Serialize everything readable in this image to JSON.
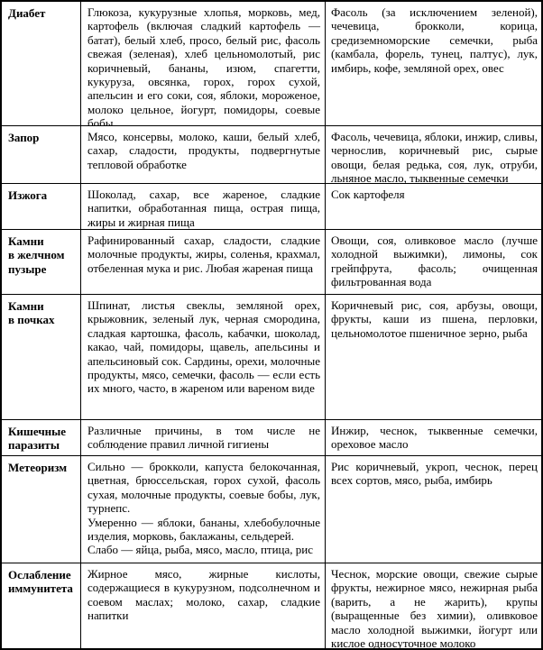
{
  "colors": {
    "text": "#000000",
    "border": "#000000",
    "background": "#ffffff"
  },
  "table": {
    "rows": [
      {
        "condition": "Диабет",
        "avoid": "Глюкоза, кукурузные хлопья, морковь, мед, картофель (включая сладкий картофель — батат), белый хлеб, просо, белый рис, фасоль свежая (зеленая), хлеб цельномолотый, рис коричневый, бананы, изюм, спагетти, кукуруза, овсянка, горох, горох сухой, апельсин и его соки, соя, яблоки, мороженое, молоко цельное, йогурт, помидоры, соевые бобы",
        "recommend": "Фасоль (за исключением зеленой), чечевица, брокколи, корица, средиземноморские семечки, рыба (камбала, форель, тунец, палтус), лук, имбирь, кофе, земляной орех, овес"
      },
      {
        "condition": "Запор",
        "avoid": "Мясо, консервы, молоко, каши, белый хлеб, сахар, сладости, продукты, подвергнутые тепловой обработке",
        "recommend": "Фасоль, чечевица, яблоки, инжир, сливы, чернослив, коричневый рис, сырые овощи, белая редька, соя, лук, отруби, льняное масло, тыквенные семечки"
      },
      {
        "condition": "Изжога",
        "avoid": "Шоколад, сахар, все жареное, сладкие напитки, обработанная пища, острая пища, жиры и жирная пища",
        "recommend": "Сок картофеля"
      },
      {
        "condition": "Камни\nв желчном\nпузыре",
        "avoid": "Рафинированный сахар, сладости, сладкие молочные продукты, жиры, соленья, крахмал, отбеленная мука и рис. Любая жареная пища",
        "recommend": "Овощи, соя, оливковое масло (лучше холодной выжимки), лимоны, сок грейпфрута, фасоль; очищенная фильтрованная вода"
      },
      {
        "condition": "Камни\nв почках",
        "avoid": "Шпинат, листья свеклы, земляной орех, крыжовник, зеленый лук, черная смородина, сладкая картошка, фасоль, кабачки, шоколад, какао, чай, помидоры, щавель, апельсины и апельсиновый сок. Сардины, орехи, молочные продукты, мясо, семечки, фасоль — если есть их много, часто, в жареном или вареном виде",
        "recommend": "Коричневый рис, соя, арбузы, овощи, фрукты, каши из пшена, перловки, цельномолотое пшеничное зерно, рыба"
      },
      {
        "condition": "Кишечные\nпаразиты",
        "avoid": "Различные причины, в том числе не соблюдение правил личной гигиены",
        "recommend": "Инжир, чеснок, тыквенные семечки, ореховое масло"
      },
      {
        "condition": "Метеоризм",
        "avoid": "Сильно — брокколи, капуста белокочанная, цветная, брюссельская, горох сухой, фасоль сухая, молочные продукты, соевые бобы, лук, турнепс.\nУмеренно — яблоки, бананы, хлебобулочные изделия, морковь, баклажаны, сельдерей.\nСлабо — яйца, рыба, мясо, масло, птица, рис",
        "recommend": "Рис коричневый, укроп, чеснок, перец всех сортов, мясо, рыба, имбирь"
      },
      {
        "condition": "Ослабление\nиммунитета",
        "avoid": "Жирное мясо, жирные кислоты, содержащиеся в кукурузном, подсолнечном и соевом маслах; молоко, сахар, сладкие напитки",
        "recommend": "Чеснок, морские овощи, свежие сырые фрукты, нежирное мясо, нежирная рыба (варить, а не жарить), крупы (выращенные без химии), оливковое масло холодной выжимки, йогурт или кислое односуточное молоко"
      }
    ]
  }
}
